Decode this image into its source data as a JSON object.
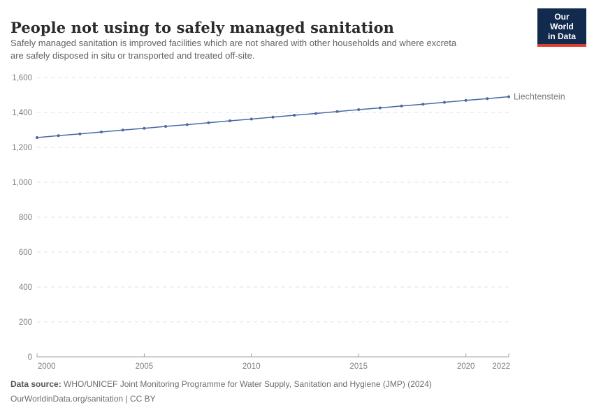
{
  "header": {
    "title": "People not using to safely managed sanitation",
    "subtitle_lines": [
      "Safely managed sanitation is improved facilities which are not shared with other households and where excreta",
      "are safely disposed in situ or transported and treated off-site."
    ],
    "logo": {
      "line1": "Our World",
      "line2": "in Data"
    }
  },
  "chart_data": {
    "type": "line",
    "title": "People not using to safely managed sanitation",
    "xlabel": "",
    "ylabel": "",
    "xlim": [
      2000,
      2022
    ],
    "ylim": [
      0,
      1600
    ],
    "xticks": [
      2000,
      2005,
      2010,
      2015,
      2020,
      2022
    ],
    "yticks": [
      0,
      200,
      400,
      600,
      800,
      1000,
      1200,
      1400,
      1600
    ],
    "grid": "dashed-horizontal",
    "legend_position": "end-of-line",
    "series": [
      {
        "name": "Liechtenstein",
        "color": "#4a69a2",
        "x": [
          2000,
          2001,
          2002,
          2003,
          2004,
          2005,
          2006,
          2007,
          2008,
          2009,
          2010,
          2011,
          2012,
          2013,
          2014,
          2015,
          2016,
          2017,
          2018,
          2019,
          2020,
          2021,
          2022
        ],
        "values": [
          1256,
          1267,
          1277,
          1288,
          1299,
          1309,
          1320,
          1330,
          1341,
          1352,
          1362,
          1373,
          1384,
          1394,
          1405,
          1416,
          1426,
          1437,
          1447,
          1458,
          1469,
          1479,
          1490
        ]
      }
    ]
  },
  "colors": {
    "line": "#4a69a2",
    "gridline": "#e0e0e0",
    "axis": "#a3a3a3",
    "tick_label": "#7d7d7d",
    "logo_bg": "#122a4e",
    "logo_red": "#dc3e32"
  },
  "footer": {
    "datasource_label": "Data source:",
    "datasource_text": " WHO/UNICEF Joint Monitoring Programme for Water Supply, Sanitation and Hygiene (JMP) (2024)",
    "license_line": "OurWorldinData.org/sanitation | CC BY"
  }
}
